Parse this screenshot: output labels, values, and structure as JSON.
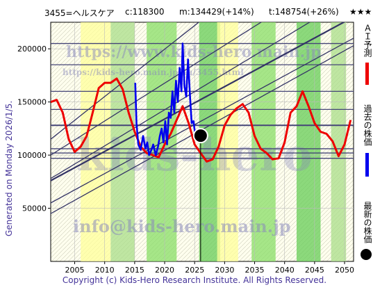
{
  "header": {
    "code_name": "3455=ヘルスケア",
    "close": "c:118300",
    "median": "m:134429(+14%)",
    "target": "t:148754(+26%)",
    "stars": "★★★"
  },
  "side_label": "Generated on Monday 2026/1/5.",
  "legend": {
    "ai_forecast": "ＡＩ予測",
    "past_price": "過去の株価",
    "latest_price": "最新の株価"
  },
  "watermarks": {
    "big": "kids-hero",
    "url_top": "https://www.kids-hero.main.jp",
    "url_mid": "https://kids-hero.main.jp/au/3455.html",
    "email": "info@kids-hero.main.jp"
  },
  "copyright": "Copyright (c) Kids-Hero Research Institute. All Rights Reserved.",
  "colors": {
    "forecast": "#ee0000",
    "price": "#0000ee",
    "band_green": "#55cc55",
    "band_yellow": "#ffffaa",
    "trend": "#333366"
  },
  "chart_data": {
    "type": "line",
    "x_ticks": [
      2005,
      2010,
      2015,
      2020,
      2025,
      2030,
      2035,
      2040,
      2045,
      2050
    ],
    "y_ticks": [
      50000,
      100000,
      150000,
      200000
    ],
    "xlim": [
      2001,
      2051.5
    ],
    "ylim": [
      0,
      225000
    ],
    "grid": true,
    "latest_point": {
      "x": 2026.0,
      "y": 118300
    },
    "hlines": [
      205000,
      185000,
      160000,
      143000,
      128000,
      106000,
      102000,
      97000
    ],
    "trend_lines": [
      {
        "x": [
          2001,
          2051.5
        ],
        "y": [
          45000,
          203000
        ]
      },
      {
        "x": [
          2001,
          2051.5
        ],
        "y": [
          55000,
          210000
        ]
      },
      {
        "x": [
          2001,
          2051.5
        ],
        "y": [
          76000,
          230000
        ]
      },
      {
        "x": [
          2001,
          2051.5
        ],
        "y": [
          78000,
          250000
        ]
      },
      {
        "x": [
          2001,
          2051.5
        ],
        "y": [
          100000,
          280000
        ]
      },
      {
        "x": [
          2001,
          2051.5
        ],
        "y": [
          115000,
          340000
        ]
      }
    ],
    "series": [
      {
        "name": "ＡＩ予測",
        "color": "#ee0000",
        "x": [
          2001,
          2002,
          2003,
          2004,
          2005,
          2006,
          2007,
          2008,
          2009,
          2010,
          2011,
          2012,
          2013,
          2014,
          2015,
          2016,
          2017,
          2018,
          2019,
          2020,
          2021,
          2022,
          2023,
          2024,
          2025,
          2026,
          2027,
          2028,
          2029,
          2030,
          2031,
          2032,
          2033,
          2034,
          2035,
          2036,
          2037,
          2038,
          2039,
          2040,
          2041,
          2042,
          2043,
          2044,
          2045,
          2046,
          2047,
          2048,
          2049,
          2050,
          2051
        ],
        "y": [
          150000,
          152000,
          140000,
          115000,
          103000,
          108000,
          118000,
          140000,
          163000,
          168000,
          168000,
          172000,
          162000,
          140000,
          122000,
          108000,
          102000,
          100000,
          98000,
          110000,
          120000,
          133000,
          146000,
          130000,
          110000,
          102000,
          94000,
          96000,
          108000,
          128000,
          138000,
          144000,
          148000,
          140000,
          118000,
          106000,
          102000,
          96000,
          97000,
          112000,
          140000,
          146000,
          160000,
          146000,
          130000,
          122000,
          120000,
          113000,
          99000,
          110000,
          133000
        ]
      },
      {
        "name": "過去の株価",
        "color": "#0000ee",
        "x": [
          2015.1,
          2015.3,
          2015.6,
          2016.0,
          2016.4,
          2016.8,
          2017.1,
          2017.4,
          2017.8,
          2018.1,
          2018.5,
          2018.9,
          2019.2,
          2019.5,
          2019.8,
          2020.1,
          2020.4,
          2020.7,
          2021.0,
          2021.3,
          2021.6,
          2021.9,
          2022.2,
          2022.5,
          2022.8,
          2023.0,
          2023.3,
          2023.6,
          2023.9,
          2024.2,
          2024.5,
          2024.8,
          2025.2,
          2025.6
        ],
        "y": [
          168000,
          130000,
          110000,
          105000,
          118000,
          106000,
          112000,
          100000,
          105000,
          110000,
          100000,
          108000,
          118000,
          125000,
          112000,
          132000,
          110000,
          140000,
          135000,
          160000,
          140000,
          170000,
          150000,
          182000,
          160000,
          205000,
          165000,
          155000,
          190000,
          158000,
          130000,
          132000,
          115000,
          118300
        ]
      }
    ]
  }
}
